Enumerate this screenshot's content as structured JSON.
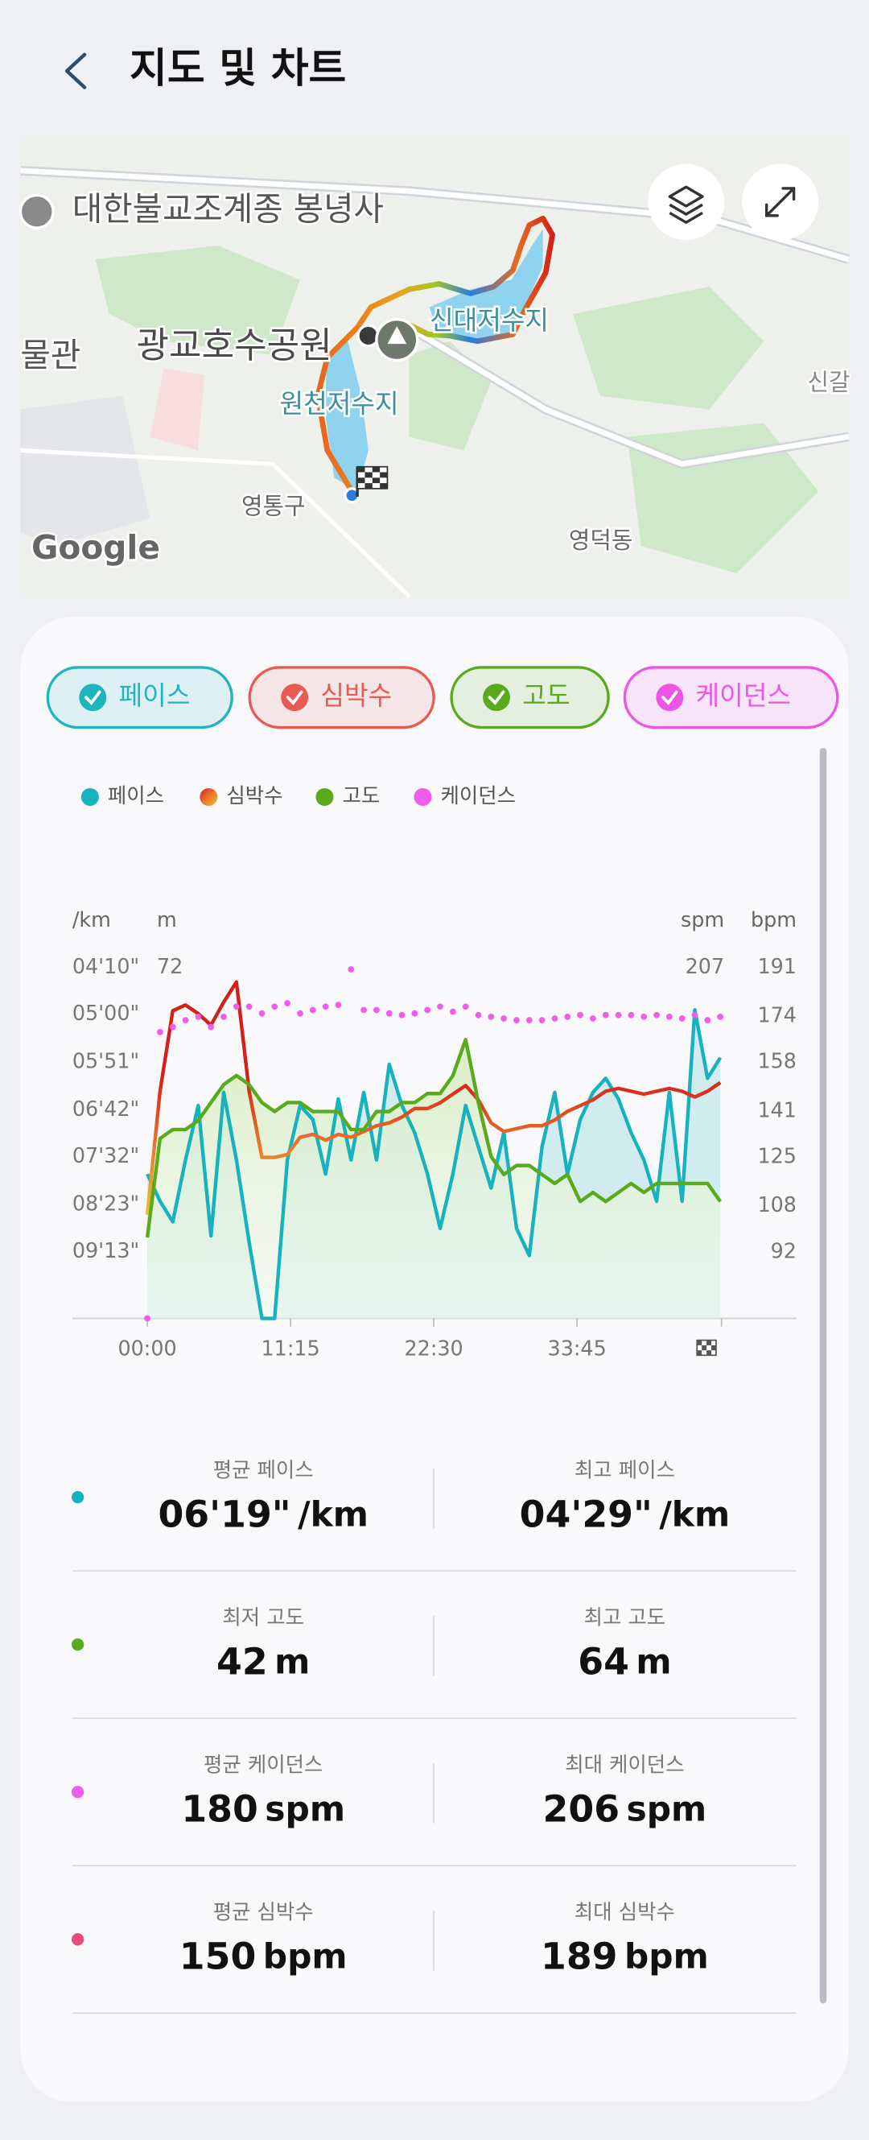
{
  "header": {
    "title": "지도 및 차트"
  },
  "map": {
    "labels": [
      {
        "text": "대한불교조계종 봉녕사"
      },
      {
        "text": "광교호수공원"
      },
      {
        "text": "신대저수지"
      },
      {
        "text": "원천저수지"
      },
      {
        "text": "영통구"
      },
      {
        "text": "영덕동"
      },
      {
        "text": "물관"
      },
      {
        "text": "신갈"
      }
    ],
    "attribution": "Google"
  },
  "chips": [
    {
      "label": "페이스",
      "color": "#1fb5bd"
    },
    {
      "label": "심박수",
      "color": "#ea5a52"
    },
    {
      "label": "고도",
      "color": "#5aaa1e"
    },
    {
      "label": "케이던스",
      "color": "#ee55e6"
    }
  ],
  "chart_data": {
    "type": "line",
    "x": [
      0,
      1,
      2,
      3,
      4,
      5,
      6,
      7,
      8,
      9,
      10,
      11,
      12,
      13,
      14,
      15,
      16,
      17,
      18,
      19,
      20,
      21,
      22,
      23,
      24,
      25,
      26,
      27,
      28,
      29,
      30,
      31,
      32,
      33,
      34,
      35,
      36,
      37,
      38,
      39,
      40,
      41,
      42,
      43,
      44,
      45
    ],
    "xlim": [
      0,
      45.1
    ],
    "xticks": [
      {
        "value": 0,
        "label": "00:00"
      },
      {
        "value": 11.25,
        "label": "11:15"
      },
      {
        "value": 22.5,
        "label": "22:30"
      },
      {
        "value": 33.75,
        "label": "33:45"
      }
    ],
    "axes": [
      {
        "id": "pace",
        "unit": "/km",
        "lim": [
          624,
          250
        ],
        "ticks": [
          {
            "value": 250,
            "label": "04'10\""
          },
          {
            "value": 300,
            "label": "05'00\""
          },
          {
            "value": 351,
            "label": "05'51\""
          },
          {
            "value": 402,
            "label": "06'42\""
          },
          {
            "value": 452,
            "label": "07'32\""
          },
          {
            "value": 503,
            "label": "08'23\""
          },
          {
            "value": 553,
            "label": "09'13\""
          }
        ]
      },
      {
        "id": "alt",
        "unit": "m",
        "lim": [
          33,
          72
        ],
        "ticks": [
          72
        ]
      },
      {
        "id": "cad",
        "unit": "spm",
        "lim": [
          0,
          207
        ],
        "ticks": [
          207
        ]
      },
      {
        "id": "hr",
        "unit": "bpm",
        "lim": [
          69,
          191
        ],
        "ticks": [
          191,
          174,
          158,
          141,
          125,
          108,
          92
        ]
      }
    ],
    "series": [
      {
        "name": "페이스",
        "color": "#16b2bd",
        "axis": "pace",
        "style": "line",
        "area": true,
        "values": [
          470,
          499,
          521,
          455,
          397,
          536,
          383,
          455,
          543,
          624,
          624,
          455,
          397,
          412,
          470,
          390,
          455,
          383,
          455,
          353,
          397,
          426,
          470,
          528,
          470,
          397,
          441,
          485,
          426,
          528,
          557,
          441,
          383,
          470,
          412,
          383,
          368,
          390,
          426,
          455,
          499,
          383,
          499,
          295,
          368,
          346
        ]
      },
      {
        "name": "심박수",
        "colors": [
          "#d3201b",
          "#e9782a",
          "#e3c42c"
        ],
        "axis": "hr",
        "style": "line",
        "area": false,
        "values": [
          105,
          148,
          176,
          178,
          175,
          171,
          179,
          186,
          148,
          125,
          125,
          126,
          132,
          133,
          131,
          133,
          132,
          134,
          136,
          137,
          139,
          142,
          142,
          144,
          147,
          150,
          145,
          137,
          134,
          135,
          136,
          136,
          138,
          141,
          143,
          145,
          148,
          149,
          148,
          147,
          148,
          149,
          148,
          146,
          148,
          151
        ]
      },
      {
        "name": "고도",
        "color": "#5aaa1e",
        "axis": "alt",
        "style": "line",
        "area": true,
        "values": [
          42,
          53,
          54,
          54,
          55,
          57,
          59,
          60,
          59,
          57,
          56,
          57,
          57,
          56,
          56,
          56,
          54,
          54,
          56,
          56,
          57,
          57,
          58,
          58,
          60,
          64,
          57,
          51,
          49,
          50,
          50,
          49,
          48,
          49,
          46,
          47,
          46,
          47,
          48,
          47,
          48,
          48,
          48,
          48,
          48,
          46
        ]
      },
      {
        "name": "케이던스",
        "color": "#f05ceb",
        "axis": "cad",
        "style": "dots",
        "area": false,
        "values": [
          0,
          169,
          172,
          176,
          178,
          172,
          178,
          184,
          184,
          180,
          184,
          186,
          180,
          182,
          184,
          185,
          206,
          182,
          182,
          180,
          179,
          180,
          182,
          184,
          181,
          184,
          179,
          178,
          177,
          176,
          176,
          176,
          177,
          178,
          179,
          177,
          179,
          179,
          179,
          178,
          179,
          178,
          177,
          179,
          176,
          178
        ]
      }
    ]
  },
  "stats": [
    {
      "color": "#16b2bd",
      "items": [
        {
          "label": "평균 페이스",
          "value": "06'19\"",
          "unit": "/km"
        },
        {
          "label": "최고 페이스",
          "value": "04'29\"",
          "unit": "/km"
        }
      ]
    },
    {
      "color": "#5aaa1e",
      "items": [
        {
          "label": "최저 고도",
          "value": "42",
          "unit": "m"
        },
        {
          "label": "최고 고도",
          "value": "64",
          "unit": "m"
        }
      ]
    },
    {
      "color": "#f05ceb",
      "items": [
        {
          "label": "평균 케이던스",
          "value": "180",
          "unit": "spm"
        },
        {
          "label": "최대 케이던스",
          "value": "206",
          "unit": "spm"
        }
      ]
    },
    {
      "color": "#ea4a7c",
      "items": [
        {
          "label": "평균 심박수",
          "value": "150",
          "unit": "bpm"
        },
        {
          "label": "최대 심박수",
          "value": "189",
          "unit": "bpm"
        }
      ]
    }
  ]
}
